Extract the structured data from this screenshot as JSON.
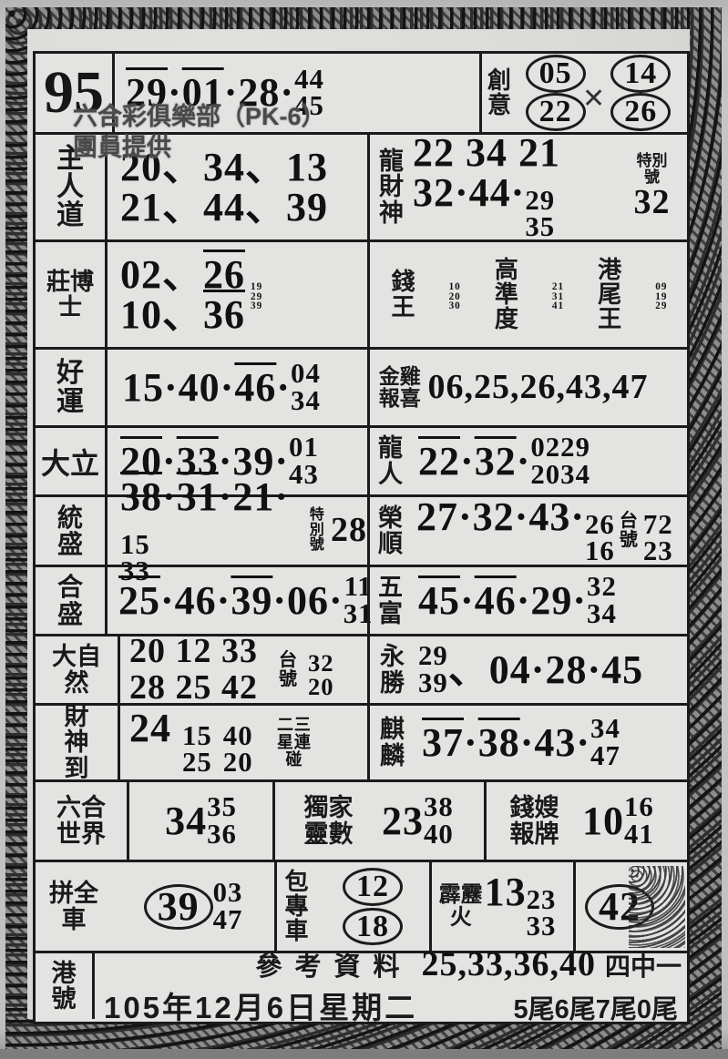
{
  "meta": {
    "club_line1": "六合彩俱樂部（PK-6）",
    "club_line2": "團員提供"
  },
  "header": {
    "issue": "95",
    "main_tokens": [
      {
        "t": "29",
        "o": 1
      },
      {
        "t": "·"
      },
      {
        "t": "01",
        "o": 1
      },
      {
        "t": "·"
      },
      {
        "t": "28"
      },
      {
        "t": "·"
      },
      {
        "s": [
          "44",
          "45"
        ]
      }
    ],
    "creative": {
      "label": "創意",
      "line1": [
        {
          "t": "05",
          "c": 1
        },
        {
          "t": "14",
          "c": 1
        }
      ],
      "line2": [
        {
          "t": "22",
          "c": 1
        },
        {
          "t": "26",
          "c": 1
        }
      ],
      "cross_mark": "✕"
    }
  },
  "row_master": {
    "label": "主人道",
    "line1": [
      {
        "t": "20、34、13"
      }
    ],
    "line2": [
      {
        "t": "21、44、39"
      }
    ]
  },
  "row_dragon_god": {
    "label": "龍財神",
    "line1": [
      {
        "t": "22 34 21"
      }
    ],
    "line2": [
      {
        "t": "32·44·"
      },
      {
        "s": [
          "29",
          "35"
        ]
      }
    ],
    "special_label": "特別號",
    "special_value": "32"
  },
  "row_doctor": {
    "label": "莊博士",
    "line1": [
      {
        "t": "02、"
      },
      {
        "t": "26",
        "o": 1
      }
    ],
    "line2": [
      {
        "t": "10、"
      },
      {
        "t": "36",
        "o": 1
      }
    ],
    "stack3": [
      {
        "s": [
          "19",
          "29",
          "39"
        ]
      }
    ]
  },
  "row_money_trio": {
    "g1_label": "錢王",
    "g1_nums": [
      {
        "s": [
          "10",
          "20",
          "30"
        ]
      }
    ],
    "g2_label": "高準度",
    "g2_nums": [
      {
        "s": [
          "21",
          "31",
          "41"
        ]
      }
    ],
    "g3_label": "港尾王",
    "g3_nums": [
      {
        "s": [
          "09",
          "19",
          "29"
        ]
      }
    ]
  },
  "row_luck": {
    "label": "好運",
    "tokens": [
      {
        "t": "15·40·"
      },
      {
        "t": "46",
        "o": 1
      },
      {
        "t": "·"
      },
      {
        "s": [
          "04",
          "34"
        ]
      }
    ]
  },
  "row_golden_rooster": {
    "label": "金雞報喜",
    "nums": "06,25,26,43,47"
  },
  "row_dali": {
    "label": "大立",
    "tokens": [
      {
        "t": "20",
        "o": 1
      },
      {
        "t": "·"
      },
      {
        "t": "33",
        "o": 1
      },
      {
        "t": "·39·"
      },
      {
        "s": [
          "01",
          "43"
        ]
      }
    ]
  },
  "row_dragon_man": {
    "label": "龍人",
    "tokens": [
      {
        "t": "22",
        "o": 1
      },
      {
        "t": "·"
      },
      {
        "t": "32",
        "o": 1
      },
      {
        "t": "·"
      },
      {
        "s": [
          "02",
          "20"
        ]
      },
      {
        "t": " "
      },
      {
        "s": [
          "29",
          "34"
        ]
      }
    ]
  },
  "row_tongsheng": {
    "label": "統盛",
    "tokens": [
      {
        "t": "38",
        "o": 1
      },
      {
        "t": "·"
      },
      {
        "t": "31",
        "o": 1
      },
      {
        "t": "·21·"
      },
      {
        "s": [
          "15",
          "33"
        ]
      }
    ],
    "special_label": "特別號",
    "special_value": "28"
  },
  "row_rongshun": {
    "label": "榮順",
    "tokens": [
      {
        "t": "27·32·43·"
      },
      {
        "s": [
          "26",
          "16"
        ]
      }
    ],
    "tai_label": "台號",
    "tai_tokens": [
      {
        "s": [
          "72",
          "23"
        ]
      }
    ]
  },
  "row_hesheng": {
    "label": "合盛",
    "tokens": [
      {
        "t": "25",
        "o": 1
      },
      {
        "t": "·46·"
      },
      {
        "t": "39",
        "o": 1
      },
      {
        "t": "·06·"
      },
      {
        "s": [
          "11",
          "31"
        ]
      }
    ]
  },
  "row_wufu": {
    "label": "五富",
    "tokens": [
      {
        "t": "45",
        "o": 1
      },
      {
        "t": "·"
      },
      {
        "t": "46",
        "o": 1
      },
      {
        "t": "·29·"
      },
      {
        "s": [
          "32",
          "34"
        ]
      }
    ]
  },
  "row_nature": {
    "label": "大自然",
    "line1": [
      {
        "t": "20 12 33"
      }
    ],
    "line2": [
      {
        "t": "28 25 42"
      }
    ],
    "tai_label": "台號",
    "tai_tokens": [
      {
        "s": [
          "32",
          "20"
        ]
      }
    ]
  },
  "row_yongsheng": {
    "label": "永勝",
    "tokens": [
      {
        "s": [
          "29",
          "39"
        ]
      },
      {
        "t": "、04·28·45"
      }
    ]
  },
  "row_fortune_arrives": {
    "label": "財神到",
    "tokens": [
      {
        "t": "24 "
      },
      {
        "s": [
          "15",
          "25"
        ]
      },
      {
        "t": " "
      },
      {
        "s": [
          "40",
          "20"
        ]
      }
    ],
    "combo_label": "二三星連碰"
  },
  "row_qilin": {
    "label": "麒麟",
    "tokens": [
      {
        "t": "37",
        "o": 1
      },
      {
        "t": "·"
      },
      {
        "t": "38",
        "o": 1
      },
      {
        "t": "·43·"
      },
      {
        "s": [
          "34",
          "47"
        ]
      }
    ]
  },
  "row_liuhe_world": {
    "label": "六合世界",
    "tokens": [
      {
        "t": "34 "
      },
      {
        "s": [
          "35",
          "36"
        ]
      }
    ]
  },
  "row_exclusive": {
    "label": "獨家靈數",
    "tokens": [
      {
        "t": "23 "
      },
      {
        "s": [
          "38",
          "40"
        ]
      }
    ]
  },
  "row_qiansao": {
    "label": "錢嫂報牌",
    "tokens": [
      {
        "t": "10 "
      },
      {
        "s": [
          "16",
          "41"
        ]
      }
    ]
  },
  "row_pin_car": {
    "label": "拼全車",
    "tokens": [
      {
        "t": "39",
        "c": 1
      },
      {
        "t": " "
      },
      {
        "s": [
          "03",
          "47"
        ]
      }
    ]
  },
  "row_bao_car": {
    "label": "包專車",
    "top": [
      {
        "t": "12",
        "c": 1
      }
    ],
    "bottom": [
      {
        "t": "18",
        "c": 1
      }
    ]
  },
  "row_pili_fire": {
    "label": "霹靂火",
    "tokens": [
      {
        "t": "13"
      },
      {
        "s": [
          "23",
          "33"
        ]
      }
    ]
  },
  "row_42": {
    "tokens": [
      {
        "t": "42",
        "c": 1
      }
    ]
  },
  "footer": {
    "label": "港號",
    "ref_label": "參考資料",
    "ref_nums": "25,33,36,40",
    "ref_hit": "四中一",
    "date": "105年12月6日星期二",
    "tails": "5尾6尾7尾0尾"
  }
}
